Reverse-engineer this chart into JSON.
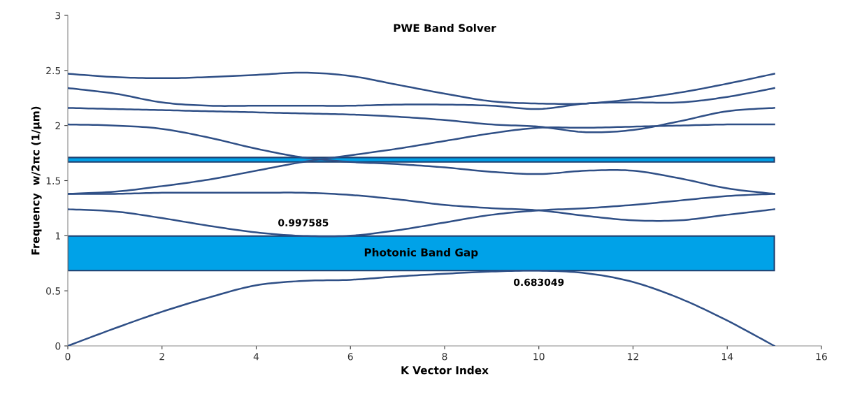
{
  "chart_data": {
    "type": "line",
    "title": "PWE Band Solver",
    "xlabel": "K Vector Index",
    "ylabel": "Frequency  w/2πc (1/µm)",
    "x": [
      0,
      1,
      2,
      3,
      4,
      5,
      6,
      7,
      8,
      9,
      10,
      11,
      12,
      13,
      14,
      15
    ],
    "series": [
      {
        "color": "#2f4f86",
        "values": [
          0,
          0.16,
          0.31,
          0.44,
          0.55,
          0.59,
          0.6,
          0.63,
          0.655,
          0.675,
          0.683,
          0.66,
          0.58,
          0.43,
          0.23,
          0
        ]
      },
      {
        "color": "#2f4f86",
        "values": [
          1.24,
          1.22,
          1.16,
          1.09,
          1.03,
          0.998,
          1.0,
          1.05,
          1.12,
          1.19,
          1.23,
          1.25,
          1.28,
          1.32,
          1.36,
          1.38
        ]
      },
      {
        "color": "#2f4f86",
        "values": [
          1.38,
          1.38,
          1.39,
          1.39,
          1.39,
          1.39,
          1.37,
          1.33,
          1.28,
          1.25,
          1.23,
          1.18,
          1.14,
          1.14,
          1.19,
          1.24
        ]
      },
      {
        "color": "#2f4f86",
        "values": [
          1.38,
          1.4,
          1.45,
          1.51,
          1.59,
          1.67,
          1.73,
          1.79,
          1.86,
          1.93,
          1.98,
          1.98,
          1.99,
          2.0,
          2.01,
          2.01
        ]
      },
      {
        "color": "#2f4f86",
        "values": [
          2.01,
          2.0,
          1.97,
          1.89,
          1.79,
          1.71,
          1.67,
          1.65,
          1.62,
          1.58,
          1.56,
          1.59,
          1.59,
          1.52,
          1.43,
          1.38
        ]
      },
      {
        "color": "#2f4f86",
        "values": [
          2.16,
          2.15,
          2.14,
          2.13,
          2.12,
          2.11,
          2.1,
          2.08,
          2.05,
          2.01,
          1.99,
          1.94,
          1.96,
          2.04,
          2.13,
          2.16
        ]
      },
      {
        "color": "#2f4f86",
        "values": [
          2.34,
          2.29,
          2.21,
          2.18,
          2.18,
          2.18,
          2.18,
          2.19,
          2.19,
          2.18,
          2.15,
          2.2,
          2.21,
          2.21,
          2.26,
          2.34
        ]
      },
      {
        "color": "#2f4f86",
        "values": [
          2.47,
          2.44,
          2.43,
          2.44,
          2.46,
          2.48,
          2.45,
          2.37,
          2.29,
          2.22,
          2.2,
          2.2,
          2.24,
          2.3,
          2.38,
          2.47
        ]
      }
    ],
    "bands": [
      {
        "axis": "y",
        "from": 0.683049,
        "to": 0.997585,
        "label": "Photonic Band Gap",
        "color": "#00a2e8"
      },
      {
        "axis": "y",
        "from": 1.67,
        "to": 1.71,
        "color": "#00a2e8"
      }
    ],
    "annotations": [
      {
        "text": "0.997585",
        "x": 5,
        "y": 0.997585
      },
      {
        "text": "0.683049",
        "x": 10,
        "y": 0.683049
      }
    ],
    "xlim": [
      0,
      16
    ],
    "xticks": [
      0,
      2,
      4,
      6,
      8,
      10,
      12,
      14,
      16
    ],
    "ylim": [
      0,
      3
    ],
    "yticks": [
      0,
      0.5,
      1,
      1.5,
      2,
      2.5,
      3
    ],
    "grid": false,
    "legend": false,
    "marker": "none",
    "line_style": "solid"
  }
}
